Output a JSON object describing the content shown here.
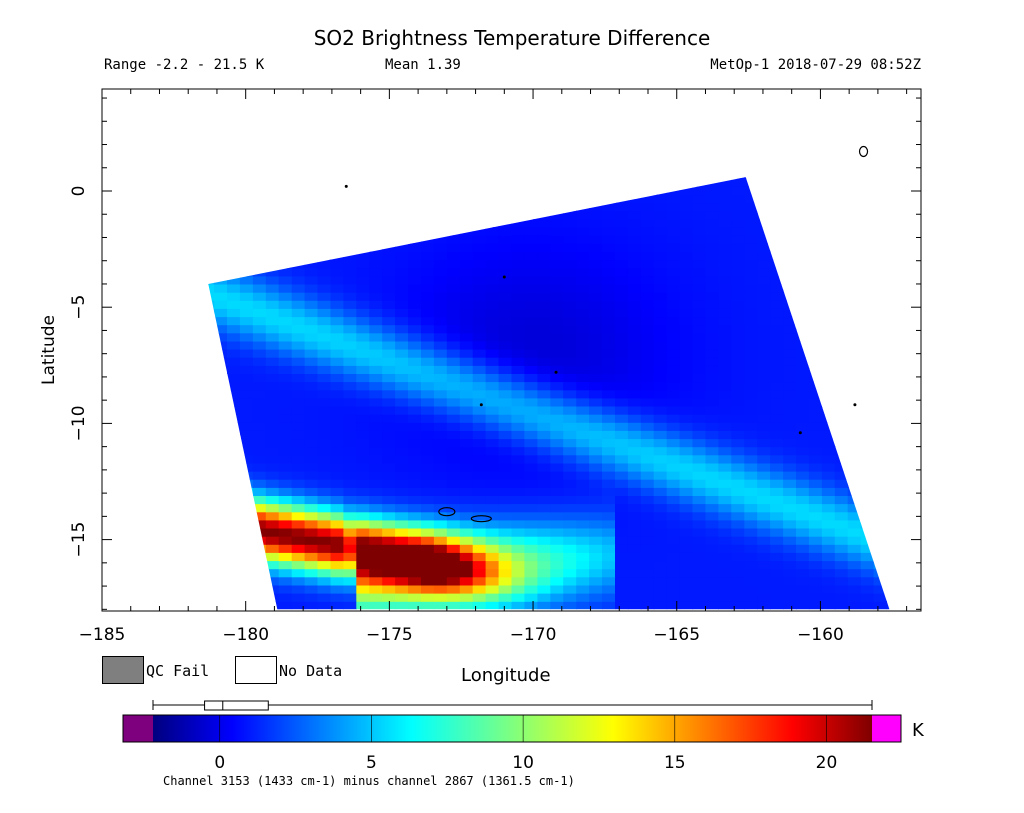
{
  "header": {
    "title": "SO2 Brightness Temperature Difference",
    "range_text": "Range -2.2 - 21.5 K",
    "mean_text": "Mean 1.39",
    "satellite_text": "MetOp-1 2018-07-29 08:52Z"
  },
  "legend": {
    "qc_fail_label": "QC Fail",
    "no_data_label": "No Data",
    "qc_fail_color": "#7f7f7f",
    "no_data_color": "#ffffff"
  },
  "colorbar": {
    "unit": "K",
    "ticks": [
      "0",
      "5",
      "10",
      "15",
      "20"
    ],
    "tick_values": [
      0,
      5,
      10,
      15,
      20
    ],
    "range": [
      -2.2,
      21.5
    ],
    "under_color": "#7f007f",
    "over_color": "#ff00ff",
    "box_whisker": {
      "min": -2.2,
      "q1": -0.5,
      "median": 0.1,
      "q3": 1.6,
      "max": 21.5
    },
    "footnote": "Channel 3153 (1433 cm-1) minus channel 2867 (1361.5 cm-1)"
  },
  "chart_data": {
    "type": "heatmap",
    "title": "SO2 Brightness Temperature Difference",
    "xlabel": "Longitude",
    "ylabel": "Latitude",
    "xlim": [
      -185,
      -156.5
    ],
    "ylim": [
      -18,
      4.3
    ],
    "x_ticks": [
      "-185",
      "-180",
      "-175",
      "-170",
      "-165",
      "-160"
    ],
    "x_tick_values": [
      -185,
      -180,
      -175,
      -170,
      -165,
      -160
    ],
    "y_ticks": [
      "0",
      "-5",
      "-10",
      "-15"
    ],
    "y_tick_values": [
      0,
      -5,
      -10,
      -15
    ],
    "swath_corners": {
      "top_left": [
        -181.3,
        -4
      ],
      "top_right": [
        -162.6,
        0.6
      ],
      "bottom_right": [
        -157.6,
        -18
      ],
      "bottom_left": [
        -178.9,
        -18
      ]
    },
    "features": [
      {
        "name": "background",
        "value_K": 1.0
      },
      {
        "name": "ash_plume_core",
        "lon_range": [
          -180,
          -174
        ],
        "lat": -14.5,
        "max_value_K": 21.5
      },
      {
        "name": "plume_tail",
        "lon_range": [
          -174,
          -167
        ],
        "lat": -16.5,
        "value_K": 11
      },
      {
        "name": "diagonal_band",
        "from": [
          -180,
          -5
        ],
        "to": [
          -158,
          -15
        ],
        "value_K": 5.5
      }
    ]
  }
}
